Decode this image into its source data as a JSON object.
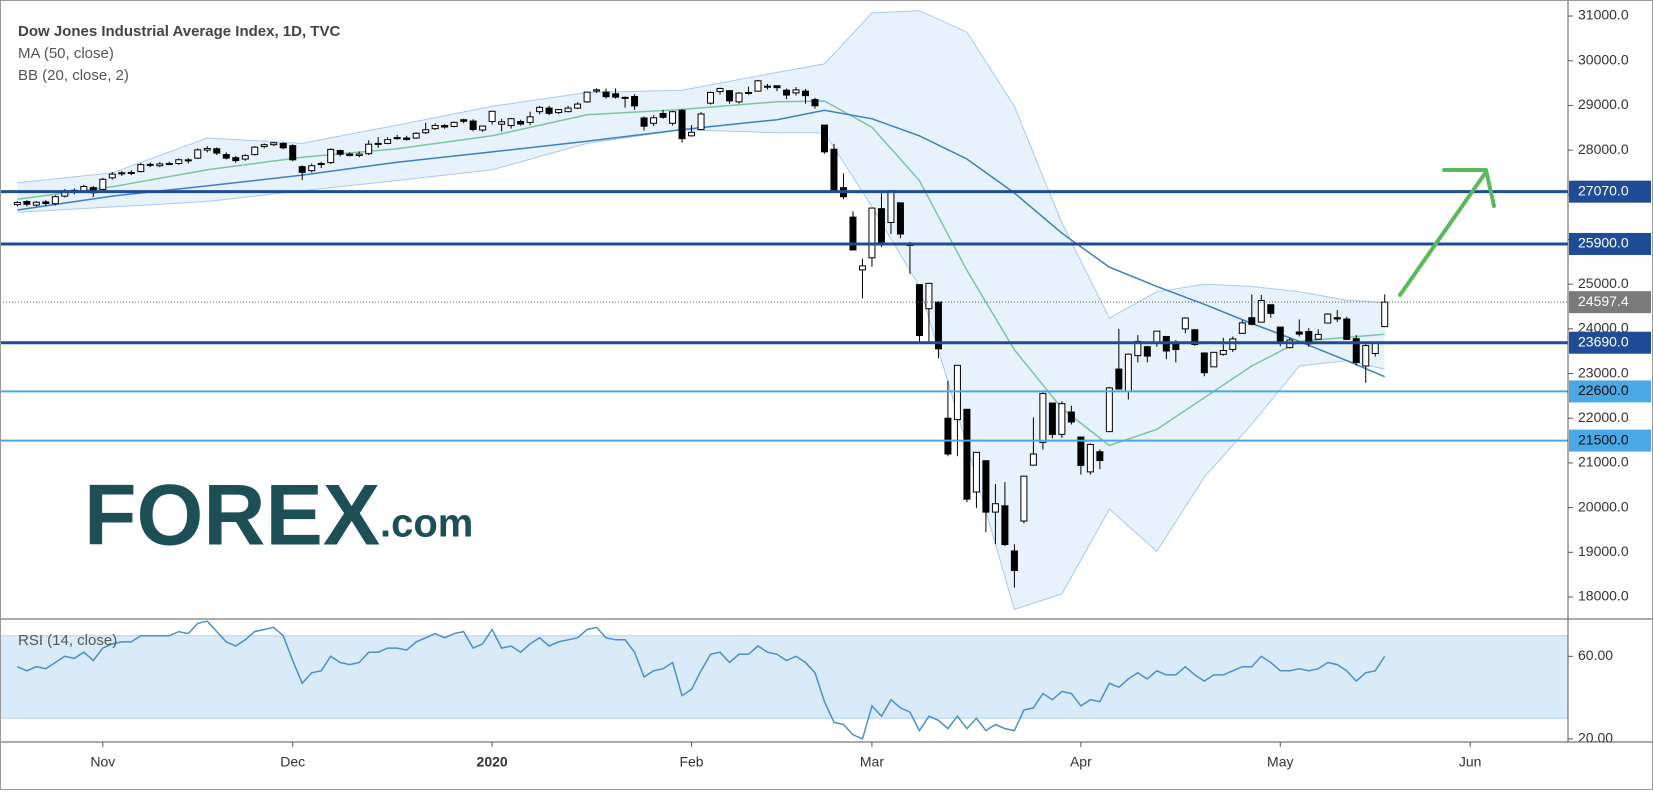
{
  "chart_data": [
    {
      "type": "candlestick",
      "title": "Dow Jones Industrial Average Index, 1D, TVC",
      "xlim": [
        -1.3,
        163.3
      ],
      "ylim": [
        17530,
        31180
      ],
      "yticks": [
        {
          "value": 18000,
          "label": "18000.0"
        },
        {
          "value": 19000,
          "label": "19000.0"
        },
        {
          "value": 20000,
          "label": "20000.0"
        },
        {
          "value": 21000,
          "label": "21000.0"
        },
        {
          "value": 22000,
          "label": "22000.0"
        },
        {
          "value": 23000,
          "label": "23000.0"
        },
        {
          "value": 24000,
          "label": "24000.0"
        },
        {
          "value": 25000,
          "label": "25000.0"
        },
        {
          "value": 26000,
          "label": "26000.0"
        },
        {
          "value": 27000,
          "label": "27000.0"
        },
        {
          "value": 28000,
          "label": "28000.0"
        },
        {
          "value": 29000,
          "label": "29000.0"
        },
        {
          "value": 30000,
          "label": "30000.0"
        },
        {
          "value": 31000,
          "label": "31000.0"
        }
      ],
      "up_color": "#ffffff",
      "down_color": "#000000",
      "edge_color": "#000000",
      "open": [
        26780,
        26850,
        26770,
        26840,
        26800,
        26970,
        27100,
        27080,
        27160,
        27120,
        27380,
        27470,
        27500,
        27520,
        27680,
        27650,
        27700,
        27700,
        27760,
        27820,
        28000,
        28030,
        27900,
        27830,
        27800,
        27900,
        28080,
        28120,
        28150,
        28100,
        27630,
        27540,
        27700,
        27720,
        27990,
        27910,
        27880,
        27920,
        28150,
        28150,
        28280,
        28270,
        28270,
        28390,
        28480,
        28550,
        28530,
        28680,
        28650,
        28450,
        28640,
        28580,
        28550,
        28640,
        28620,
        28860,
        28940,
        28840,
        28860,
        28940,
        29080,
        29320,
        29300,
        29260,
        29180,
        29200,
        28720,
        28600,
        28820,
        28600,
        28890,
        28320,
        28460,
        29050,
        29310,
        29330,
        29080,
        29290,
        29320,
        29430,
        29440,
        29340,
        29280,
        29320,
        29130,
        28560,
        28020,
        27160,
        26500,
        25320,
        25590,
        26690,
        26380,
        26820,
        25910,
        24990,
        24450,
        24600,
        22000,
        21970,
        22200,
        20350,
        21050,
        19900,
        20040,
        19030,
        19700,
        20950,
        21460,
        22340,
        21640,
        22140,
        21580,
        20800,
        21250,
        21700,
        23100,
        22600,
        23400,
        23600,
        23690,
        23830,
        23700,
        24000,
        23980,
        23460,
        23150,
        23430,
        23540,
        23900,
        24250,
        24150,
        24540,
        24040,
        23580,
        23930,
        23940,
        23770,
        24130,
        24250,
        24220,
        23780,
        23170,
        23450,
        24050
      ],
      "high": [
        26860,
        26880,
        26860,
        26880,
        26990,
        27130,
        27140,
        27220,
        27200,
        27380,
        27510,
        27530,
        27550,
        27710,
        27720,
        27730,
        27740,
        27810,
        27820,
        28040,
        28090,
        28060,
        27950,
        27870,
        27910,
        28090,
        28150,
        28180,
        28170,
        28130,
        27660,
        27700,
        27740,
        28040,
        28010,
        27950,
        27970,
        28220,
        28290,
        28290,
        28340,
        28320,
        28400,
        28610,
        28600,
        28580,
        28640,
        28700,
        28690,
        28550,
        28880,
        28700,
        28720,
        28680,
        28860,
        28990,
        28990,
        28920,
        28990,
        29070,
        29310,
        29380,
        29380,
        29380,
        29200,
        29250,
        28750,
        28780,
        28900,
        28880,
        28920,
        28560,
        28850,
        29310,
        29400,
        29340,
        29300,
        29420,
        29570,
        29480,
        29440,
        29380,
        29410,
        29370,
        29170,
        28560,
        28140,
        27480,
        26630,
        25570,
        26710,
        27030,
        27100,
        26820,
        25950,
        24990,
        25020,
        24600,
        22840,
        23190,
        22200,
        21240,
        21050,
        20530,
        20570,
        19180,
        20710,
        22020,
        22600,
        22340,
        22380,
        22280,
        21580,
        21440,
        21300,
        22700,
        24000,
        23450,
        23860,
        23620,
        23950,
        23840,
        23750,
        24260,
        24000,
        23460,
        23480,
        23800,
        23830,
        24190,
        24770,
        24760,
        24540,
        24040,
        23800,
        24210,
        24020,
        23990,
        24350,
        24420,
        24270,
        23860,
        23670,
        23690,
        24770
      ],
      "low": [
        26740,
        26740,
        26740,
        26750,
        26760,
        26940,
        27010,
        27060,
        26950,
        27100,
        27340,
        27420,
        27440,
        27500,
        27620,
        27620,
        27660,
        27670,
        27700,
        27800,
        27950,
        27890,
        27790,
        27720,
        27760,
        27880,
        28040,
        28090,
        28020,
        27750,
        27330,
        27500,
        27600,
        27690,
        27860,
        27860,
        27840,
        27890,
        28050,
        28130,
        28230,
        28210,
        28250,
        28360,
        28450,
        28480,
        28510,
        28600,
        28420,
        28410,
        28570,
        28420,
        28480,
        28550,
        28560,
        28800,
        28780,
        28810,
        28850,
        28920,
        29060,
        29280,
        29150,
        29150,
        28950,
        28900,
        28440,
        28540,
        28700,
        28550,
        28170,
        28300,
        28440,
        29020,
        29240,
        29040,
        29040,
        29240,
        29320,
        29360,
        29320,
        29140,
        29220,
        29040,
        28930,
        27920,
        27050,
        26900,
        25760,
        24680,
        25390,
        25830,
        26120,
        26030,
        25230,
        23710,
        23700,
        23340,
        21150,
        21150,
        20120,
        19990,
        19450,
        19180,
        19140,
        18210,
        19650,
        20950,
        21300,
        21550,
        21560,
        21860,
        20740,
        20740,
        20860,
        21700,
        22650,
        22420,
        23250,
        23250,
        23600,
        23320,
        23250,
        23900,
        23620,
        22940,
        23150,
        23400,
        23480,
        23890,
        24080,
        24150,
        24250,
        23610,
        23560,
        23830,
        23600,
        23770,
        24130,
        24150,
        23750,
        23180,
        22790,
        23380,
        24050
      ],
      "close": [
        26827,
        26788,
        26834,
        26805,
        26958,
        27090,
        27071,
        27186,
        27046,
        27347,
        27462,
        27492,
        27492,
        27675,
        27681,
        27691,
        27691,
        27784,
        27782,
        28005,
        28036,
        27934,
        27821,
        27766,
        27876,
        28066,
        28121,
        28164,
        28051,
        27783,
        27503,
        27650,
        27677,
        28015,
        27909,
        27881,
        27911,
        28132,
        28135,
        28235,
        28267,
        28239,
        28377,
        28455,
        28551,
        28516,
        28621,
        28645,
        28462,
        28538,
        28868,
        28634,
        28703,
        28583,
        28745,
        28956,
        28823,
        28907,
        28940,
        29030,
        29297,
        29348,
        29196,
        29186,
        29160,
        28990,
        28535,
        28723,
        28734,
        28859,
        28256,
        28399,
        28808,
        29290,
        29379,
        29103,
        29276,
        29277,
        29551,
        29423,
        29398,
        29232,
        29348,
        29219,
        28992,
        27961,
        27081,
        26957,
        25766,
        25409,
        26703,
        25917,
        27091,
        26122,
        25865,
        23851,
        25018,
        23553,
        21200,
        23185,
        20189,
        21237,
        19899,
        20087,
        19174,
        18592,
        20704,
        21200,
        22552,
        21637,
        22327,
        21917,
        20944,
        21413,
        21053,
        22680,
        22654,
        23434,
        23719,
        23390,
        23949,
        23505,
        23538,
        24242,
        23650,
        23019,
        23475,
        23516,
        23775,
        24134,
        24101,
        24634,
        24346,
        23724,
        23750,
        23883,
        23665,
        23875,
        24331,
        24222,
        23764,
        23248,
        23625,
        23685,
        24597.4
      ],
      "last_color": "#7a7a7a",
      "indicators": [
        {
          "name": "MA (50, close)",
          "color": "#3d7fc4",
          "x": [
            0,
            10,
            20,
            30,
            40,
            50,
            60,
            70,
            80,
            85,
            90,
            95,
            100,
            105,
            110,
            115,
            120,
            125,
            130,
            135,
            140,
            144
          ],
          "values": [
            26660,
            26970,
            27200,
            27440,
            27730,
            27960,
            28200,
            28460,
            28680,
            28890,
            28700,
            28320,
            27800,
            27040,
            26140,
            25380,
            24950,
            24550,
            24120,
            23720,
            23290,
            22930
          ]
        },
        {
          "name": "BB (20, close, 2)",
          "color": "#7cc59f",
          "fill": "#e8f2fc",
          "edge": "#a9c9ec",
          "x": [
            0,
            10,
            20,
            30,
            40,
            50,
            60,
            70,
            80,
            85,
            90,
            95,
            100,
            105,
            110,
            115,
            120,
            125,
            130,
            135,
            140,
            144
          ],
          "basis": [
            26900,
            27180,
            27560,
            27840,
            28030,
            28320,
            28790,
            28910,
            29080,
            29100,
            28510,
            27320,
            25310,
            23530,
            22220,
            21390,
            21750,
            22460,
            23170,
            23720,
            23810,
            23880
          ],
          "upper": [
            27270,
            27490,
            28270,
            28150,
            28560,
            28980,
            29290,
            29340,
            29740,
            29930,
            31070,
            31120,
            30640,
            28980,
            26370,
            24240,
            24830,
            25000,
            24950,
            24830,
            24640,
            24590
          ],
          "lower": [
            26610,
            26730,
            26850,
            27090,
            27320,
            27560,
            28150,
            28460,
            28390,
            28390,
            26730,
            24950,
            21390,
            17720,
            18070,
            19970,
            19020,
            20680,
            21870,
            23170,
            23290,
            23100
          ]
        }
      ],
      "levels": [
        {
          "value": 27070,
          "label": "27070.0",
          "color": "#1f4c97"
        },
        {
          "value": 25900,
          "label": "25900.0",
          "color": "#1f4c97"
        },
        {
          "value": 23690,
          "label": "23690.0",
          "color": "#1f4c97"
        },
        {
          "value": 22600,
          "label": "22600.0",
          "color": "#4aa8e6"
        },
        {
          "value": 21500,
          "label": "21500.0",
          "color": "#4aa8e6"
        }
      ]
    },
    {
      "type": "line",
      "title": "RSI (14, close)",
      "color": "#4a8fcf",
      "band": [
        30,
        70
      ],
      "band_color": "#d9eaf9",
      "xlim": [
        -1.3,
        163.3
      ],
      "xticks": [
        {
          "value": 9,
          "label": "Nov"
        },
        {
          "value": 29,
          "label": "Dec"
        },
        {
          "value": 50,
          "label": "2020"
        },
        {
          "value": 71,
          "label": "Feb"
        },
        {
          "value": 90,
          "label": "Mar"
        },
        {
          "value": 112,
          "label": "Apr"
        },
        {
          "value": 133,
          "label": "May"
        },
        {
          "value": 153,
          "label": "Jun"
        }
      ],
      "ylim": [
        18.5,
        77.6
      ],
      "yticks": [
        {
          "value": 20,
          "label": "20.00"
        },
        {
          "value": 60,
          "label": "60.00"
        }
      ],
      "values": [
        55,
        53,
        55,
        54,
        57,
        60,
        59,
        62,
        58,
        64,
        66,
        67,
        67,
        70,
        70,
        70,
        70,
        72,
        71,
        76,
        77,
        72,
        67,
        65,
        68,
        72,
        73,
        74,
        70,
        58,
        47,
        52,
        53,
        60,
        57,
        56,
        57,
        62,
        62,
        64,
        64,
        63,
        67,
        69,
        71,
        69,
        71,
        72,
        64,
        66,
        73,
        64,
        65,
        62,
        66,
        69,
        65,
        67,
        68,
        69,
        73,
        74,
        69,
        68,
        68,
        62,
        50,
        53,
        54,
        57,
        41,
        44,
        53,
        61,
        62,
        57,
        61,
        61,
        65,
        62,
        61,
        58,
        60,
        57,
        52,
        38,
        28,
        27,
        22,
        20,
        36,
        31,
        39,
        35,
        33,
        24,
        31,
        29,
        25,
        31,
        25,
        30,
        24,
        27,
        25,
        24,
        34,
        35,
        42,
        39,
        43,
        42,
        36,
        39,
        38,
        47,
        45,
        49,
        52,
        49,
        53,
        51,
        51,
        55,
        51,
        48,
        51,
        51,
        53,
        55,
        55,
        60,
        57,
        53,
        53,
        54,
        53,
        54,
        57,
        56,
        53,
        48,
        52,
        53,
        60
      ]
    }
  ],
  "logo": {
    "brand": "FOREX",
    "suffix": ".com"
  }
}
